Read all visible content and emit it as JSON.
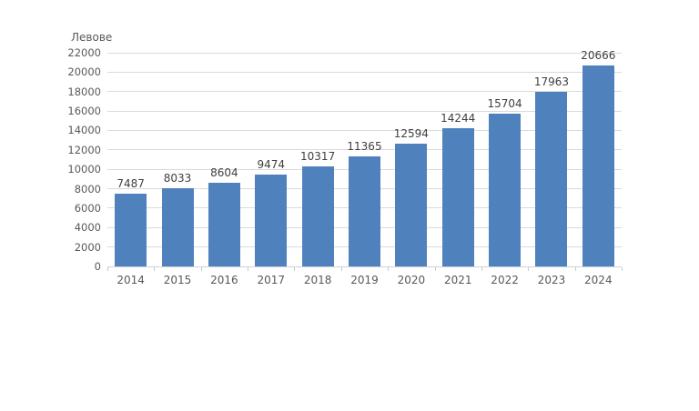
{
  "chart_data": {
    "type": "bar",
    "title": "",
    "categories": [
      "2014",
      "2015",
      "2016",
      "2017",
      "2018",
      "2019",
      "2020",
      "2021",
      "2022",
      "2023",
      "2024"
    ],
    "values": [
      7487,
      8033,
      8604,
      9474,
      10317,
      11365,
      12594,
      14244,
      15704,
      17963,
      20666
    ],
    "data_labels": [
      "7487",
      "8033",
      "8604",
      "9474",
      "10317",
      "11365",
      "12594",
      "14244",
      "15704",
      "17963",
      "20666"
    ],
    "xlabel": "",
    "ylabel": "Левове",
    "ylim": [
      0,
      22000
    ],
    "yticks": [
      0,
      2000,
      4000,
      6000,
      8000,
      10000,
      12000,
      14000,
      16000,
      18000,
      20000,
      22000
    ],
    "ytick_labels": [
      "0",
      "2000",
      "4000",
      "6000",
      "8000",
      "10000",
      "12000",
      "14000",
      "16000",
      "18000",
      "20000",
      "22000"
    ],
    "grid": "horizontal",
    "legend": "none",
    "colors": {
      "bar": "#4f81bd",
      "gridline": "#dadada",
      "axis_line": "#ccd2d9",
      "tick_label": "#595959",
      "data_label": "#404040",
      "background": "#ffffff"
    }
  }
}
